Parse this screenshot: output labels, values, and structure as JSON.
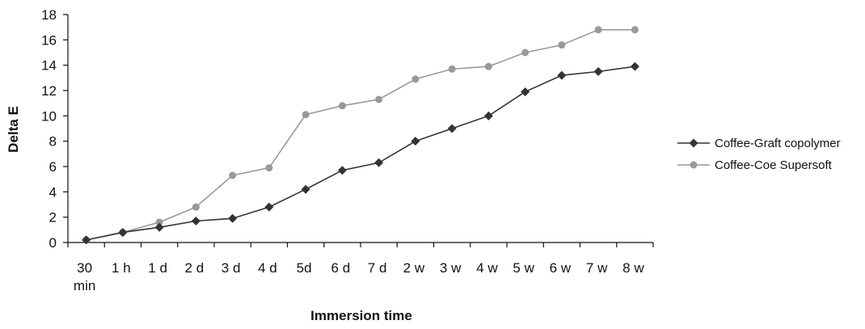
{
  "chart_data": {
    "type": "line",
    "title": "",
    "xlabel": "Immersion time",
    "ylabel": "Delta E",
    "ylim": [
      0,
      18
    ],
    "y_ticks": [
      0,
      2,
      4,
      6,
      8,
      10,
      12,
      14,
      16,
      18
    ],
    "grid": false,
    "legend_position": "right",
    "categories": [
      [
        "30",
        "min"
      ],
      [
        "1 h"
      ],
      [
        "1 d"
      ],
      [
        "2 d"
      ],
      [
        "3 d"
      ],
      [
        "4 d"
      ],
      [
        "5d"
      ],
      [
        "6 d"
      ],
      [
        "7 d"
      ],
      [
        "2 w"
      ],
      [
        "3 w"
      ],
      [
        "4 w"
      ],
      [
        "5 w"
      ],
      [
        "6 w"
      ],
      [
        "7 w"
      ],
      [
        "8 w"
      ]
    ],
    "series": [
      {
        "name": "Coffee-Graft copolymer",
        "color": "#333333",
        "marker": "diamond",
        "values": [
          0.2,
          0.8,
          1.2,
          1.7,
          1.9,
          2.8,
          4.2,
          5.7,
          6.3,
          8.0,
          9.0,
          10.0,
          11.9,
          13.2,
          13.5,
          13.9
        ]
      },
      {
        "name": "Coffee-Coe Supersoft",
        "color": "#999999",
        "marker": "circle",
        "values": [
          0.2,
          0.8,
          1.6,
          2.8,
          5.3,
          5.9,
          10.1,
          10.8,
          11.3,
          12.9,
          13.7,
          13.9,
          15.0,
          15.6,
          16.8,
          16.8
        ]
      }
    ]
  }
}
